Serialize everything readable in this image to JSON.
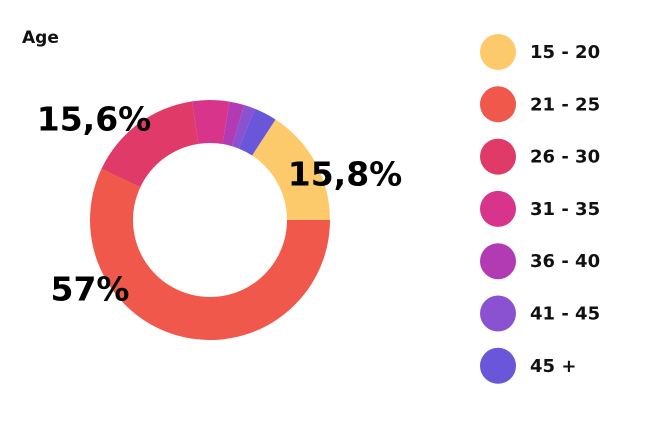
{
  "chart_data": {
    "type": "donut",
    "title": "Age",
    "categories": [
      "15 - 20",
      "21 - 25",
      "26 - 30",
      "31 - 35",
      "36 - 40",
      "41 - 45",
      "45 +"
    ],
    "values": [
      15.8,
      57,
      15.6,
      5,
      2,
      1.5,
      3.1
    ],
    "value_labels": [
      "15,8%",
      "57%",
      "15,6%",
      null,
      null,
      null,
      null
    ],
    "colors": [
      "#fdca6b",
      "#ef584a",
      "#e03a68",
      "#d8348c",
      "#b23bb4",
      "#8a52d0",
      "#6a56d8"
    ]
  }
}
